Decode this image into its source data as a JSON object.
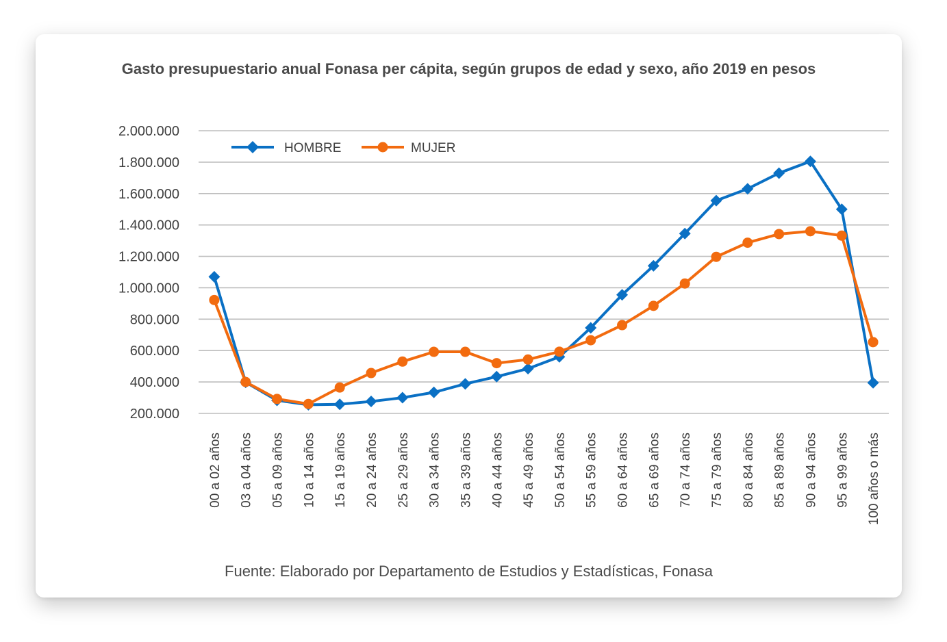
{
  "title": "Gasto presupuestario anual Fonasa per cápita, según grupos de edad y sexo, año 2019 en pesos",
  "source": "Fuente: Elaborado por Departamento de Estudios y Estadísticas, Fonasa",
  "chart_data": {
    "type": "line",
    "title": "Gasto presupuestario anual Fonasa per cápita, según grupos de edad y sexo, año 2019 en pesos",
    "xlabel": "",
    "ylabel": "",
    "ylim": [
      200000,
      2000000
    ],
    "grid": true,
    "legend_position": "top-left",
    "y_tick_labels": [
      "200.000",
      "400.000",
      "600.000",
      "800.000",
      "1.000.000",
      "1.200.000",
      "1.400.000",
      "1.600.000",
      "1.800.000",
      "2.000.000"
    ],
    "y_ticks": [
      200000,
      400000,
      600000,
      800000,
      1000000,
      1200000,
      1400000,
      1600000,
      1800000,
      2000000
    ],
    "categories": [
      "00 a 02 años",
      "03 a 04 años",
      "05 a 09 años",
      "10 a 14 años",
      "15 a 19 años",
      "20 a 24 años",
      "25 a 29 años",
      "30 a 34 años",
      "35 a 39 años",
      "40 a 44 años",
      "45 a 49 años",
      "50 a 54 años",
      "55 a 59 años",
      "60 a 64 años",
      "65 a 69 años",
      "70 a 74 años",
      "75 a 79 años",
      "80 a 84 años",
      "85 a 89 años",
      "90 a 94 años",
      "95 a 99 años",
      "100 años o más"
    ],
    "series": [
      {
        "name": "HOMBRE",
        "color": "#0a70c4",
        "marker": "diamond",
        "values": [
          1070000,
          398000,
          283000,
          255000,
          258000,
          276000,
          300000,
          334000,
          388000,
          434000,
          485000,
          560000,
          745000,
          955000,
          1140000,
          1345000,
          1555000,
          1630000,
          1730000,
          1805000,
          1500000,
          395000
        ]
      },
      {
        "name": "MUJER",
        "color": "#f26b0f",
        "marker": "circle",
        "values": [
          922000,
          400000,
          292000,
          260000,
          365000,
          457000,
          530000,
          592000,
          592000,
          520000,
          543000,
          593000,
          666000,
          762000,
          885000,
          1027000,
          1197000,
          1287000,
          1342000,
          1360000,
          1332000,
          654000
        ]
      }
    ]
  }
}
